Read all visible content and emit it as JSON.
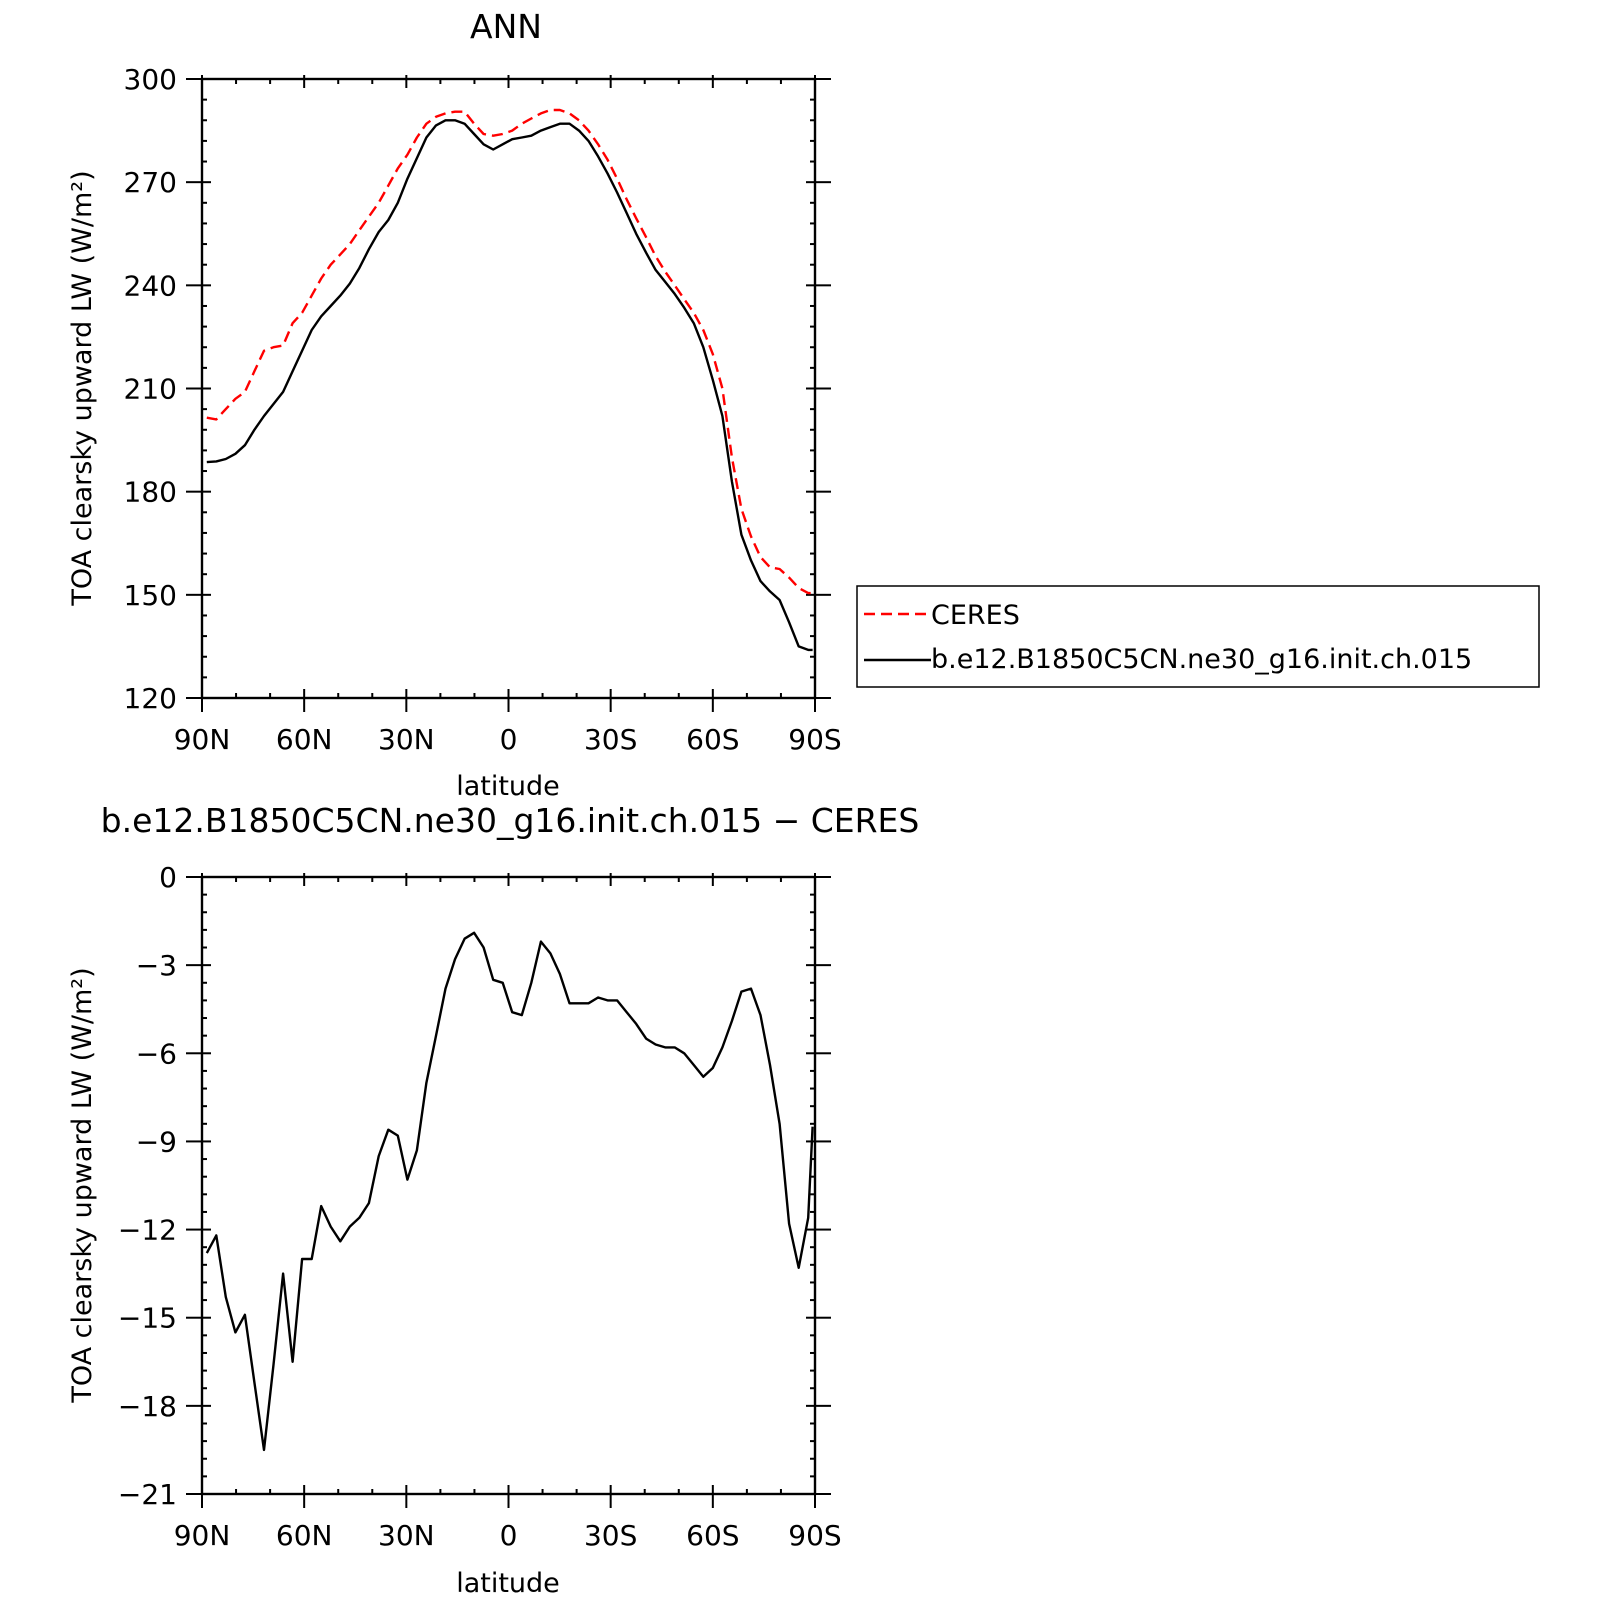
{
  "chart_data": [
    {
      "type": "line",
      "title": "ANN",
      "xlabel": "latitude",
      "ylabel": "TOA clearsky upward LW (W/m²)",
      "xlim": [
        90,
        -90
      ],
      "ylim": [
        120,
        300
      ],
      "x_tick_values": [
        90,
        60,
        30,
        0,
        -30,
        -60,
        -90
      ],
      "x_tick_labels": [
        "90N",
        "60N",
        "30N",
        "0",
        "30S",
        "60S",
        "90S"
      ],
      "y_tick_values": [
        120,
        150,
        180,
        210,
        240,
        270,
        300
      ],
      "y_tick_labels": [
        "120",
        "150",
        "180",
        "210",
        "240",
        "270",
        "300"
      ],
      "grid": false,
      "legend_position": "right",
      "x": [
        88.6,
        85.8,
        83.0,
        80.2,
        77.4,
        74.6,
        71.8,
        69.0,
        66.2,
        63.4,
        60.6,
        57.8,
        55.0,
        52.2,
        49.4,
        46.6,
        43.8,
        41.0,
        38.1,
        35.3,
        32.5,
        29.7,
        26.9,
        24.1,
        21.3,
        18.5,
        15.7,
        12.9,
        10.1,
        7.3,
        4.5,
        1.7,
        -1.1,
        -3.9,
        -6.7,
        -9.5,
        -12.3,
        -15.1,
        -17.9,
        -20.7,
        -23.5,
        -26.3,
        -29.1,
        -31.9,
        -34.7,
        -37.5,
        -40.4,
        -43.2,
        -46.0,
        -48.8,
        -51.6,
        -54.4,
        -57.2,
        -60.0,
        -62.8,
        -65.6,
        -68.4,
        -71.2,
        -74.0,
        -76.8,
        -79.6,
        -82.4,
        -85.2,
        -88.0,
        -89.3
      ],
      "series": [
        {
          "name": "CERES",
          "color": "#ff0000",
          "dash": "dashed",
          "values": [
            201.5,
            201.0,
            204.0,
            207.0,
            209.0,
            215.0,
            221.0,
            222.0,
            222.5,
            229.0,
            232.0,
            237.0,
            242.0,
            246.0,
            249.0,
            252.0,
            256.0,
            260.0,
            264.0,
            269.0,
            274.0,
            278.0,
            283.0,
            287.0,
            289.0,
            290.0,
            290.5,
            290.5,
            287.0,
            284.0,
            283.5,
            284.0,
            285.0,
            287.0,
            288.5,
            290.0,
            291.0,
            291.0,
            290.0,
            288.0,
            285.0,
            281.0,
            276.5,
            271.0,
            265.0,
            259.5,
            254.0,
            248.5,
            244.0,
            240.0,
            236.0,
            232.0,
            227.0,
            220.0,
            210.0,
            190.0,
            175.0,
            167.0,
            161.0,
            158.0,
            157.5,
            155.0,
            152.0,
            150.5,
            150.5
          ]
        },
        {
          "name": "b.e12.B1850C5CN.ne30_g16.init.ch.015",
          "color": "#000000",
          "dash": "solid",
          "values": [
            188.6,
            188.8,
            189.5,
            191.0,
            193.5,
            198.0,
            202.0,
            205.5,
            209.0,
            215.0,
            221.0,
            227.0,
            231.0,
            234.0,
            237.0,
            240.5,
            245.0,
            250.5,
            255.5,
            259.0,
            264.0,
            271.0,
            277.0,
            283.0,
            286.5,
            288.0,
            288.0,
            287.0,
            284.0,
            281.0,
            279.5,
            281.0,
            282.5,
            283.0,
            283.5,
            285.0,
            286.0,
            287.0,
            287.0,
            285.0,
            282.0,
            277.5,
            272.5,
            267.0,
            261.0,
            255.0,
            249.5,
            244.5,
            241.0,
            237.5,
            233.5,
            229.0,
            222.0,
            212.5,
            202.0,
            183.0,
            167.5,
            160.0,
            154.0,
            151.0,
            148.5,
            142.0,
            135.0,
            134.0,
            134.0
          ]
        }
      ]
    },
    {
      "type": "line",
      "title": "b.e12.B1850C5CN.ne30_g16.init.ch.015 − CERES",
      "xlabel": "latitude",
      "ylabel": "TOA clearsky upward LW (W/m²)",
      "xlim": [
        90,
        -90
      ],
      "ylim": [
        -21,
        0
      ],
      "x_tick_values": [
        90,
        60,
        30,
        0,
        -30,
        -60,
        -90
      ],
      "x_tick_labels": [
        "90N",
        "60N",
        "30N",
        "0",
        "30S",
        "60S",
        "90S"
      ],
      "y_tick_values": [
        0,
        -3,
        -6,
        -9,
        -12,
        -15,
        -18,
        -21
      ],
      "y_tick_labels": [
        "0",
        "−3",
        "−6",
        "−9",
        "−12",
        "−15",
        "−18",
        "−21"
      ],
      "grid": false,
      "x": [
        88.6,
        85.8,
        83.0,
        80.2,
        77.4,
        74.6,
        71.8,
        69.0,
        66.2,
        63.4,
        60.6,
        57.8,
        55.0,
        52.2,
        49.4,
        46.6,
        43.8,
        41.0,
        38.1,
        35.3,
        32.5,
        29.7,
        26.9,
        24.1,
        21.3,
        18.5,
        15.7,
        12.9,
        10.1,
        7.3,
        4.5,
        1.7,
        -1.1,
        -3.9,
        -6.7,
        -9.5,
        -12.3,
        -15.1,
        -17.9,
        -20.7,
        -23.5,
        -26.3,
        -29.1,
        -31.9,
        -34.7,
        -37.5,
        -40.4,
        -43.2,
        -46.0,
        -48.8,
        -51.6,
        -54.4,
        -57.2,
        -60.0,
        -62.8,
        -65.6,
        -68.4,
        -71.2,
        -74.0,
        -76.8,
        -79.6,
        -82.4,
        -85.2,
        -88.0,
        -89.3
      ],
      "series": [
        {
          "color": "#000000",
          "values": [
            -12.8,
            -12.2,
            -14.3,
            -15.5,
            -14.9,
            -17.2,
            -19.5,
            -16.6,
            -13.5,
            -16.5,
            -13.0,
            -13.0,
            -11.2,
            -11.9,
            -12.4,
            -11.9,
            -11.6,
            -11.1,
            -9.5,
            -8.6,
            -8.8,
            -10.3,
            -9.3,
            -7.0,
            -5.4,
            -3.8,
            -2.8,
            -2.1,
            -1.9,
            -2.4,
            -3.5,
            -3.6,
            -4.6,
            -4.7,
            -3.6,
            -2.2,
            -2.6,
            -3.3,
            -4.3,
            -4.3,
            -4.3,
            -4.1,
            -4.2,
            -4.2,
            -4.6,
            -5.0,
            -5.5,
            -5.7,
            -5.8,
            -5.8,
            -6.0,
            -6.4,
            -6.8,
            -6.5,
            -5.8,
            -4.9,
            -3.9,
            -3.8,
            -4.7,
            -6.4,
            -8.4,
            -11.8,
            -13.3,
            -11.6,
            -8.5
          ]
        }
      ]
    }
  ]
}
